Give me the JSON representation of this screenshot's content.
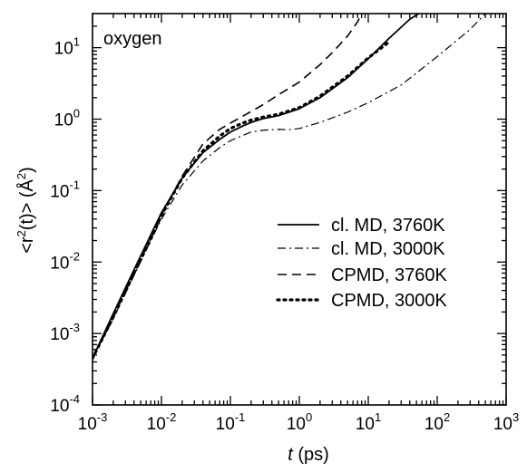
{
  "chart_data": {
    "type": "line",
    "title": "",
    "annotation": "oxygen",
    "xlabel": {
      "var": "t",
      "unit": " (ps)"
    },
    "ylabel": {
      "pre": "<r",
      "sup": "2",
      "mid": "(t)> (Å",
      "post": ")"
    },
    "xscale": "log",
    "yscale": "log",
    "xlim": [
      0.001,
      1000
    ],
    "ylim": [
      0.0001,
      30
    ],
    "grid": false,
    "legend_position": "right",
    "x_ticks": [
      {
        "value": 0.001,
        "base": "10",
        "exp": "-3"
      },
      {
        "value": 0.01,
        "base": "10",
        "exp": "-2"
      },
      {
        "value": 0.1,
        "base": "10",
        "exp": "-1"
      },
      {
        "value": 1,
        "base": "10",
        "exp": "0"
      },
      {
        "value": 10,
        "base": "10",
        "exp": "1"
      },
      {
        "value": 100,
        "base": "10",
        "exp": "2"
      },
      {
        "value": 1000,
        "base": "10",
        "exp": "3"
      }
    ],
    "y_ticks": [
      {
        "value": 0.0001,
        "base": "10",
        "exp": "-4"
      },
      {
        "value": 0.001,
        "base": "10",
        "exp": "-3"
      },
      {
        "value": 0.01,
        "base": "10",
        "exp": "-2"
      },
      {
        "value": 0.1,
        "base": "10",
        "exp": "-1"
      },
      {
        "value": 1,
        "base": "10",
        "exp": "0"
      },
      {
        "value": 10,
        "base": "10",
        "exp": "1"
      }
    ],
    "series": [
      {
        "name": "cl. MD, 3760K",
        "dash": "solid",
        "x": [
          0.001,
          0.002,
          0.004,
          0.007,
          0.01,
          0.02,
          0.04,
          0.07,
          0.1,
          0.15,
          0.2,
          0.3,
          0.5,
          1,
          2,
          5,
          10,
          20,
          40,
          60
        ],
        "y": [
          0.00045,
          0.0019,
          0.0078,
          0.024,
          0.049,
          0.15,
          0.34,
          0.52,
          0.66,
          0.8,
          0.9,
          1.02,
          1.12,
          1.4,
          2.0,
          3.8,
          7.0,
          13.5,
          25,
          32
        ]
      },
      {
        "name": "cl. MD, 3000K",
        "dash": "dashdot",
        "x": [
          0.001,
          0.002,
          0.004,
          0.007,
          0.01,
          0.02,
          0.04,
          0.07,
          0.1,
          0.2,
          0.3,
          0.5,
          0.7,
          1,
          2,
          5,
          10,
          30,
          100,
          300,
          500
        ],
        "y": [
          0.00045,
          0.0016,
          0.0065,
          0.02,
          0.04,
          0.12,
          0.26,
          0.4,
          0.5,
          0.66,
          0.7,
          0.72,
          0.71,
          0.74,
          0.9,
          1.25,
          1.7,
          3.0,
          7.5,
          18,
          30
        ]
      },
      {
        "name": "CPMD, 3760K",
        "dash": "dashed",
        "x": [
          0.001,
          0.002,
          0.004,
          0.007,
          0.01,
          0.02,
          0.04,
          0.07,
          0.1,
          0.2,
          0.3,
          0.5,
          1,
          2,
          3,
          5,
          7,
          8
        ],
        "y": [
          0.00045,
          0.0017,
          0.007,
          0.021,
          0.045,
          0.16,
          0.45,
          0.72,
          0.88,
          1.28,
          1.6,
          2.2,
          3.3,
          5.8,
          8.5,
          14.5,
          23,
          30
        ]
      },
      {
        "name": "CPMD, 3000K",
        "dash": "dotted",
        "x": [
          0.001,
          0.002,
          0.004,
          0.007,
          0.01,
          0.02,
          0.04,
          0.07,
          0.1,
          0.15,
          0.2,
          0.3,
          0.5,
          1,
          2,
          5,
          10,
          20
        ],
        "y": [
          0.00045,
          0.0017,
          0.007,
          0.021,
          0.045,
          0.15,
          0.36,
          0.58,
          0.74,
          0.88,
          0.97,
          1.07,
          1.17,
          1.45,
          2.1,
          4.0,
          7.2,
          12
        ]
      }
    ]
  }
}
